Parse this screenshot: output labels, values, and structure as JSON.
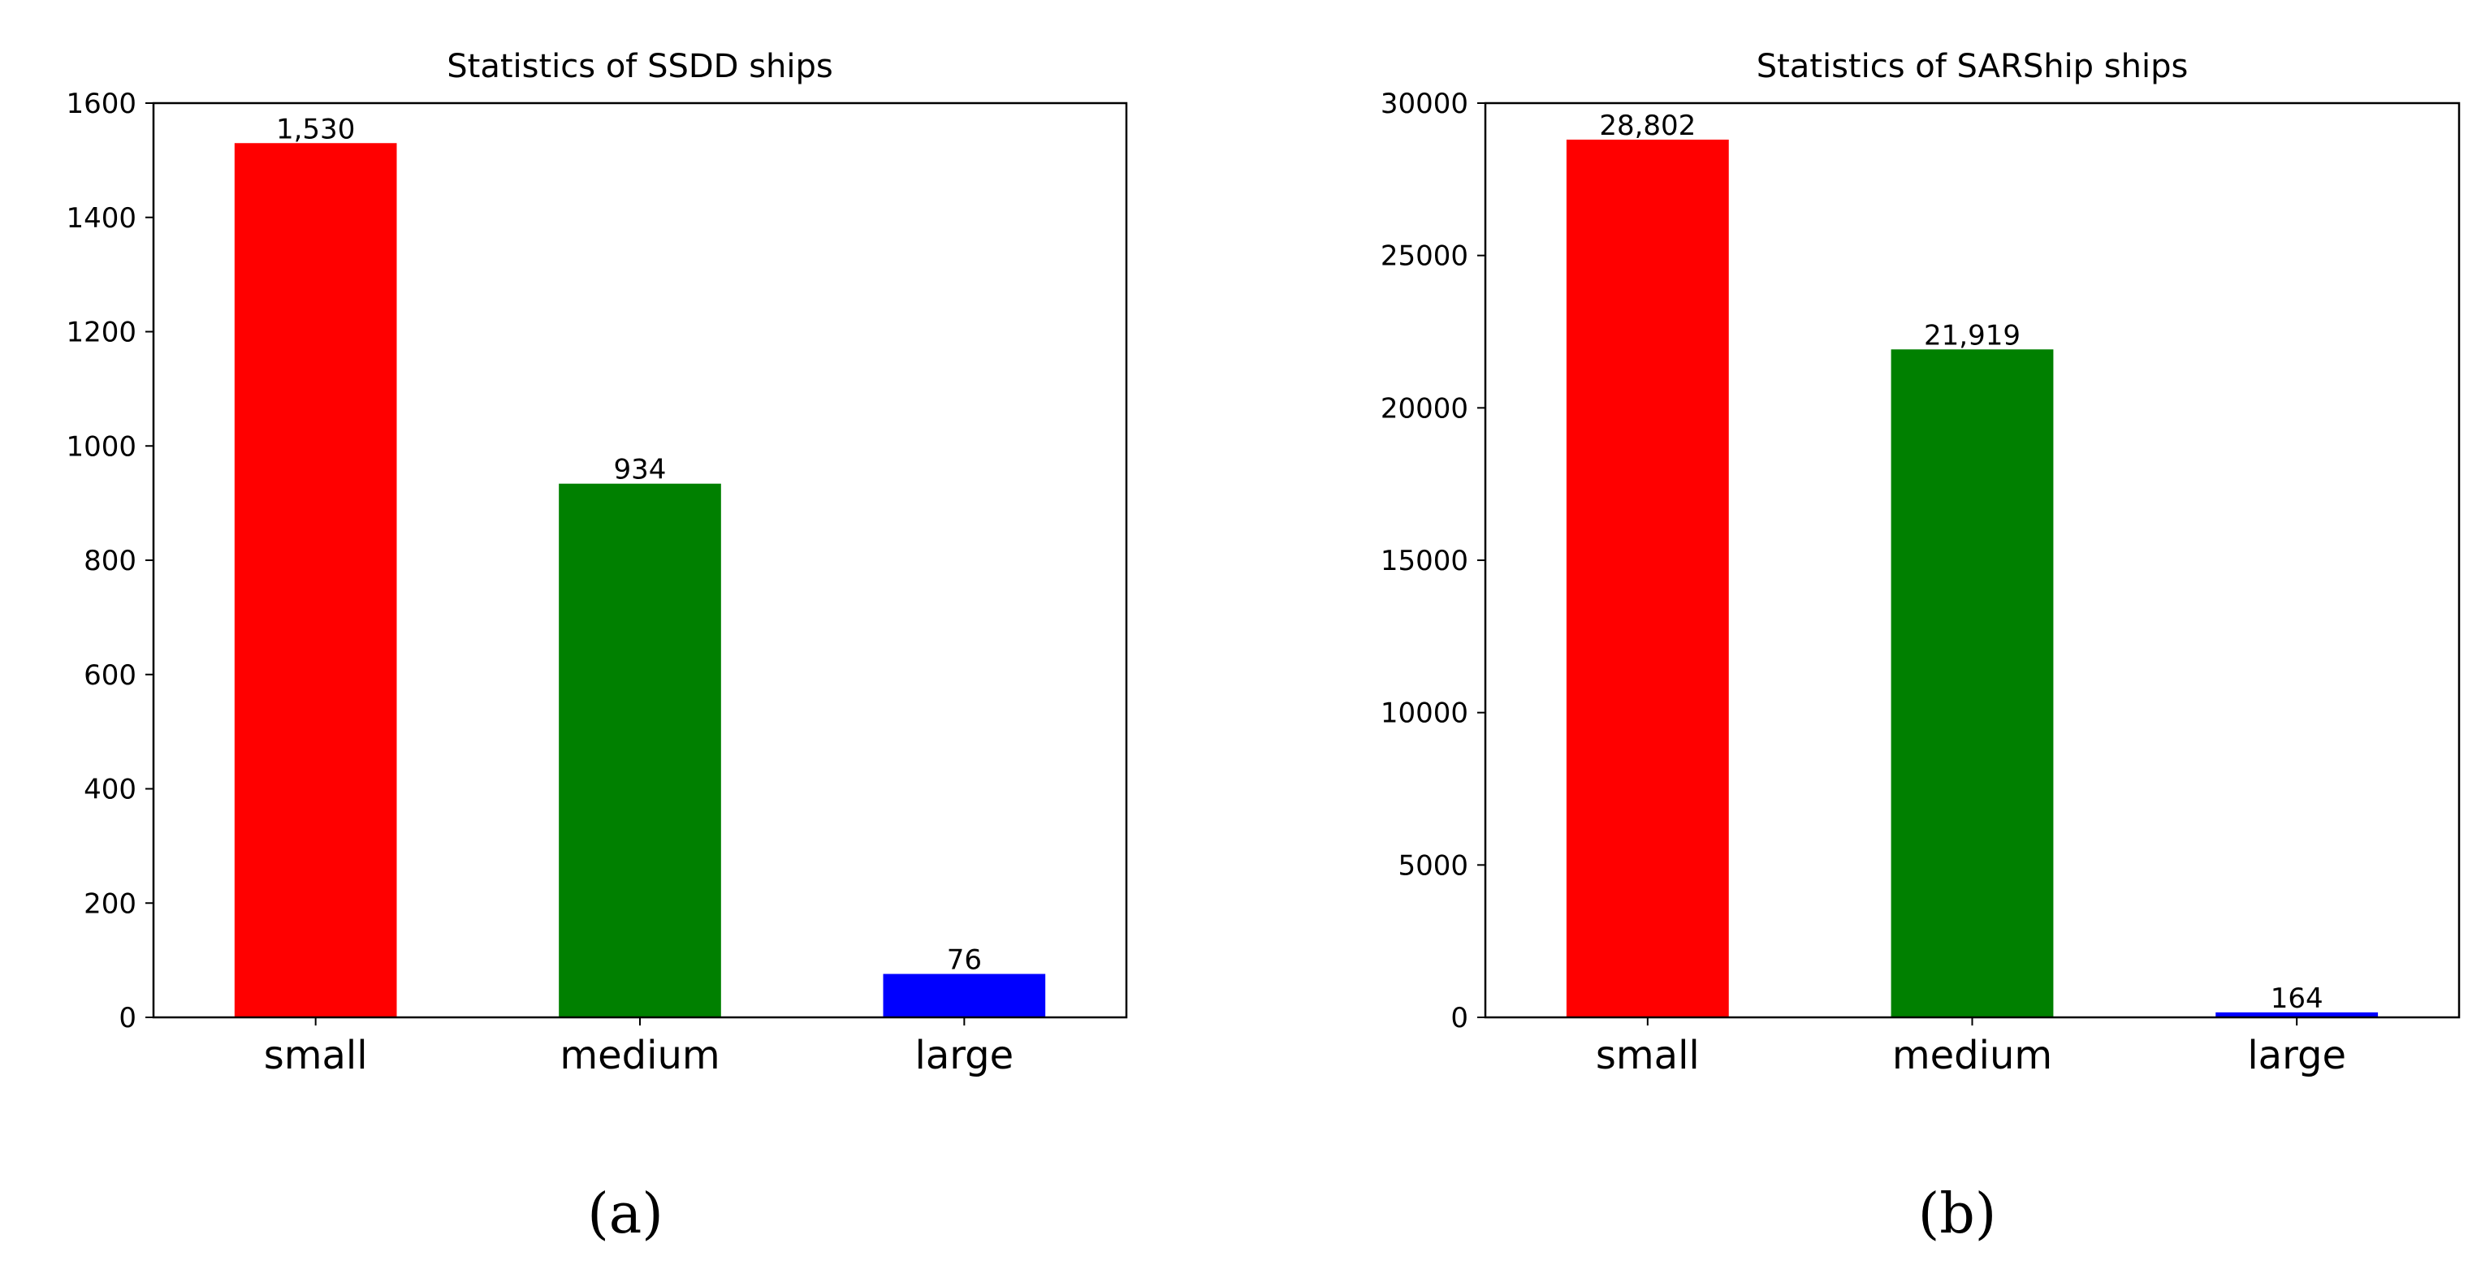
{
  "chart_data": [
    {
      "type": "bar",
      "title": "Statistics of SSDD ships",
      "categories": [
        "small",
        "medium",
        "large"
      ],
      "values": [
        1530,
        934,
        76
      ],
      "value_labels": [
        "1,530",
        "934",
        "76"
      ],
      "colors": [
        "#ff0000",
        "#008000",
        "#0000ff"
      ],
      "ylim": [
        0,
        1600
      ],
      "yticks": [
        0,
        200,
        400,
        600,
        800,
        1000,
        1200,
        1400,
        1600
      ],
      "xlabel": "",
      "ylabel": "",
      "grid": false,
      "legend": "none",
      "panel_label": "(a)"
    },
    {
      "type": "bar",
      "title": "Statistics of SARShip ships",
      "categories": [
        "small",
        "medium",
        "large"
      ],
      "values": [
        28802,
        21919,
        164
      ],
      "value_labels": [
        "28,802",
        "21,919",
        "164"
      ],
      "colors": [
        "#ff0000",
        "#008000",
        "#0000ff"
      ],
      "ylim": [
        0,
        30000
      ],
      "yticks": [
        0,
        5000,
        10000,
        15000,
        20000,
        25000,
        30000
      ],
      "xlabel": "",
      "ylabel": "",
      "grid": false,
      "legend": "none",
      "panel_label": "(b)"
    }
  ]
}
